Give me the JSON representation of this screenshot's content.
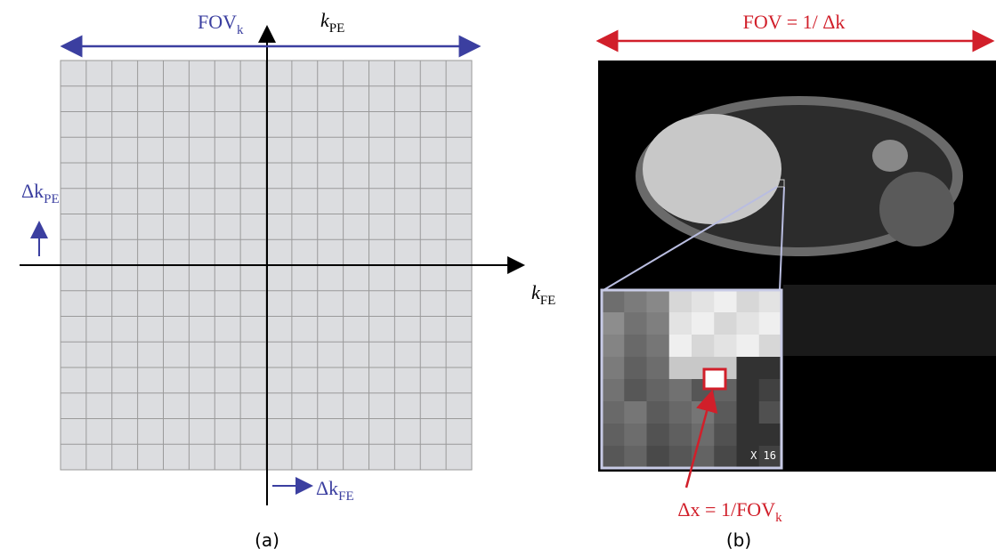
{
  "panel_a": {
    "fov_k": {
      "main": "FOV",
      "sub": "k"
    },
    "k_pe": {
      "main": "k",
      "sub": "PE"
    },
    "k_fe": {
      "main": "k",
      "sub": "FE"
    },
    "dk_pe": {
      "main": "Δk",
      "sub": "PE"
    },
    "dk_fe": {
      "main": "Δk",
      "sub": "FE"
    },
    "caption": "(a)"
  },
  "panel_b": {
    "fov": "FOV = 1/ Δk",
    "dx": {
      "main": "Δx = 1/FOV",
      "sub": "k"
    },
    "zoom": "X 16",
    "caption": "(b)"
  }
}
